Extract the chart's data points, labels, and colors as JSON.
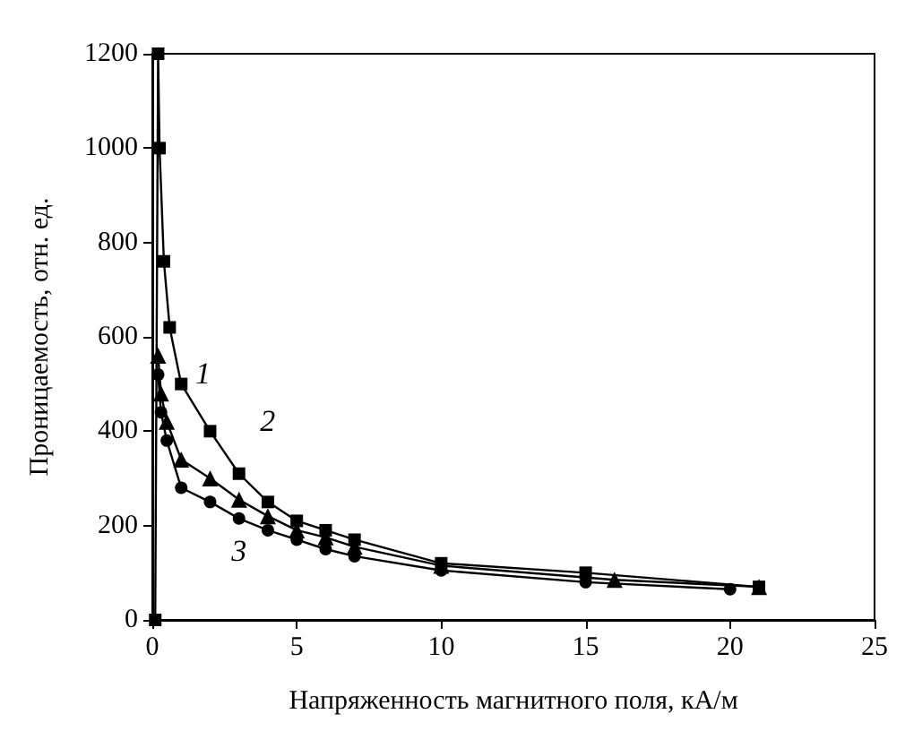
{
  "chart_data": {
    "type": "line",
    "xlabel": "Напряженность магнитного поля, кА/м",
    "ylabel": "Проницаемость, отн. ед.",
    "xlim": [
      0,
      25
    ],
    "xticks": [
      0,
      5,
      10,
      15,
      20,
      25
    ],
    "ylim": [
      0,
      1200
    ],
    "yticks": [
      0,
      200,
      400,
      600,
      800,
      1000,
      1200
    ],
    "grid": false,
    "line_style": "solid",
    "series": [
      {
        "color": "#000000",
        "marker": "square",
        "x": [
          0.1,
          0.2,
          0.25,
          0.4,
          0.6,
          1,
          2,
          3,
          4,
          5,
          6,
          7,
          10,
          15,
          21
        ],
        "values": [
          0,
          1200,
          1000,
          760,
          620,
          500,
          400,
          310,
          250,
          210,
          190,
          170,
          120,
          100,
          70
        ]
      },
      {
        "color": "#000000",
        "marker": "triangle",
        "x": [
          0.2,
          0.3,
          0.5,
          1,
          2,
          3,
          4,
          5,
          6,
          7,
          10,
          16,
          21
        ],
        "values": [
          560,
          480,
          420,
          340,
          300,
          255,
          220,
          190,
          175,
          155,
          115,
          85,
          70
        ]
      },
      {
        "color": "#000000",
        "marker": "circle",
        "x": [
          0.2,
          0.3,
          0.5,
          1,
          2,
          3,
          4,
          5,
          6,
          7,
          10,
          15,
          20
        ],
        "values": [
          520,
          440,
          380,
          280,
          250,
          215,
          190,
          170,
          150,
          135,
          105,
          80,
          65
        ]
      }
    ],
    "annotations": [
      "1",
      "2",
      "3"
    ]
  }
}
